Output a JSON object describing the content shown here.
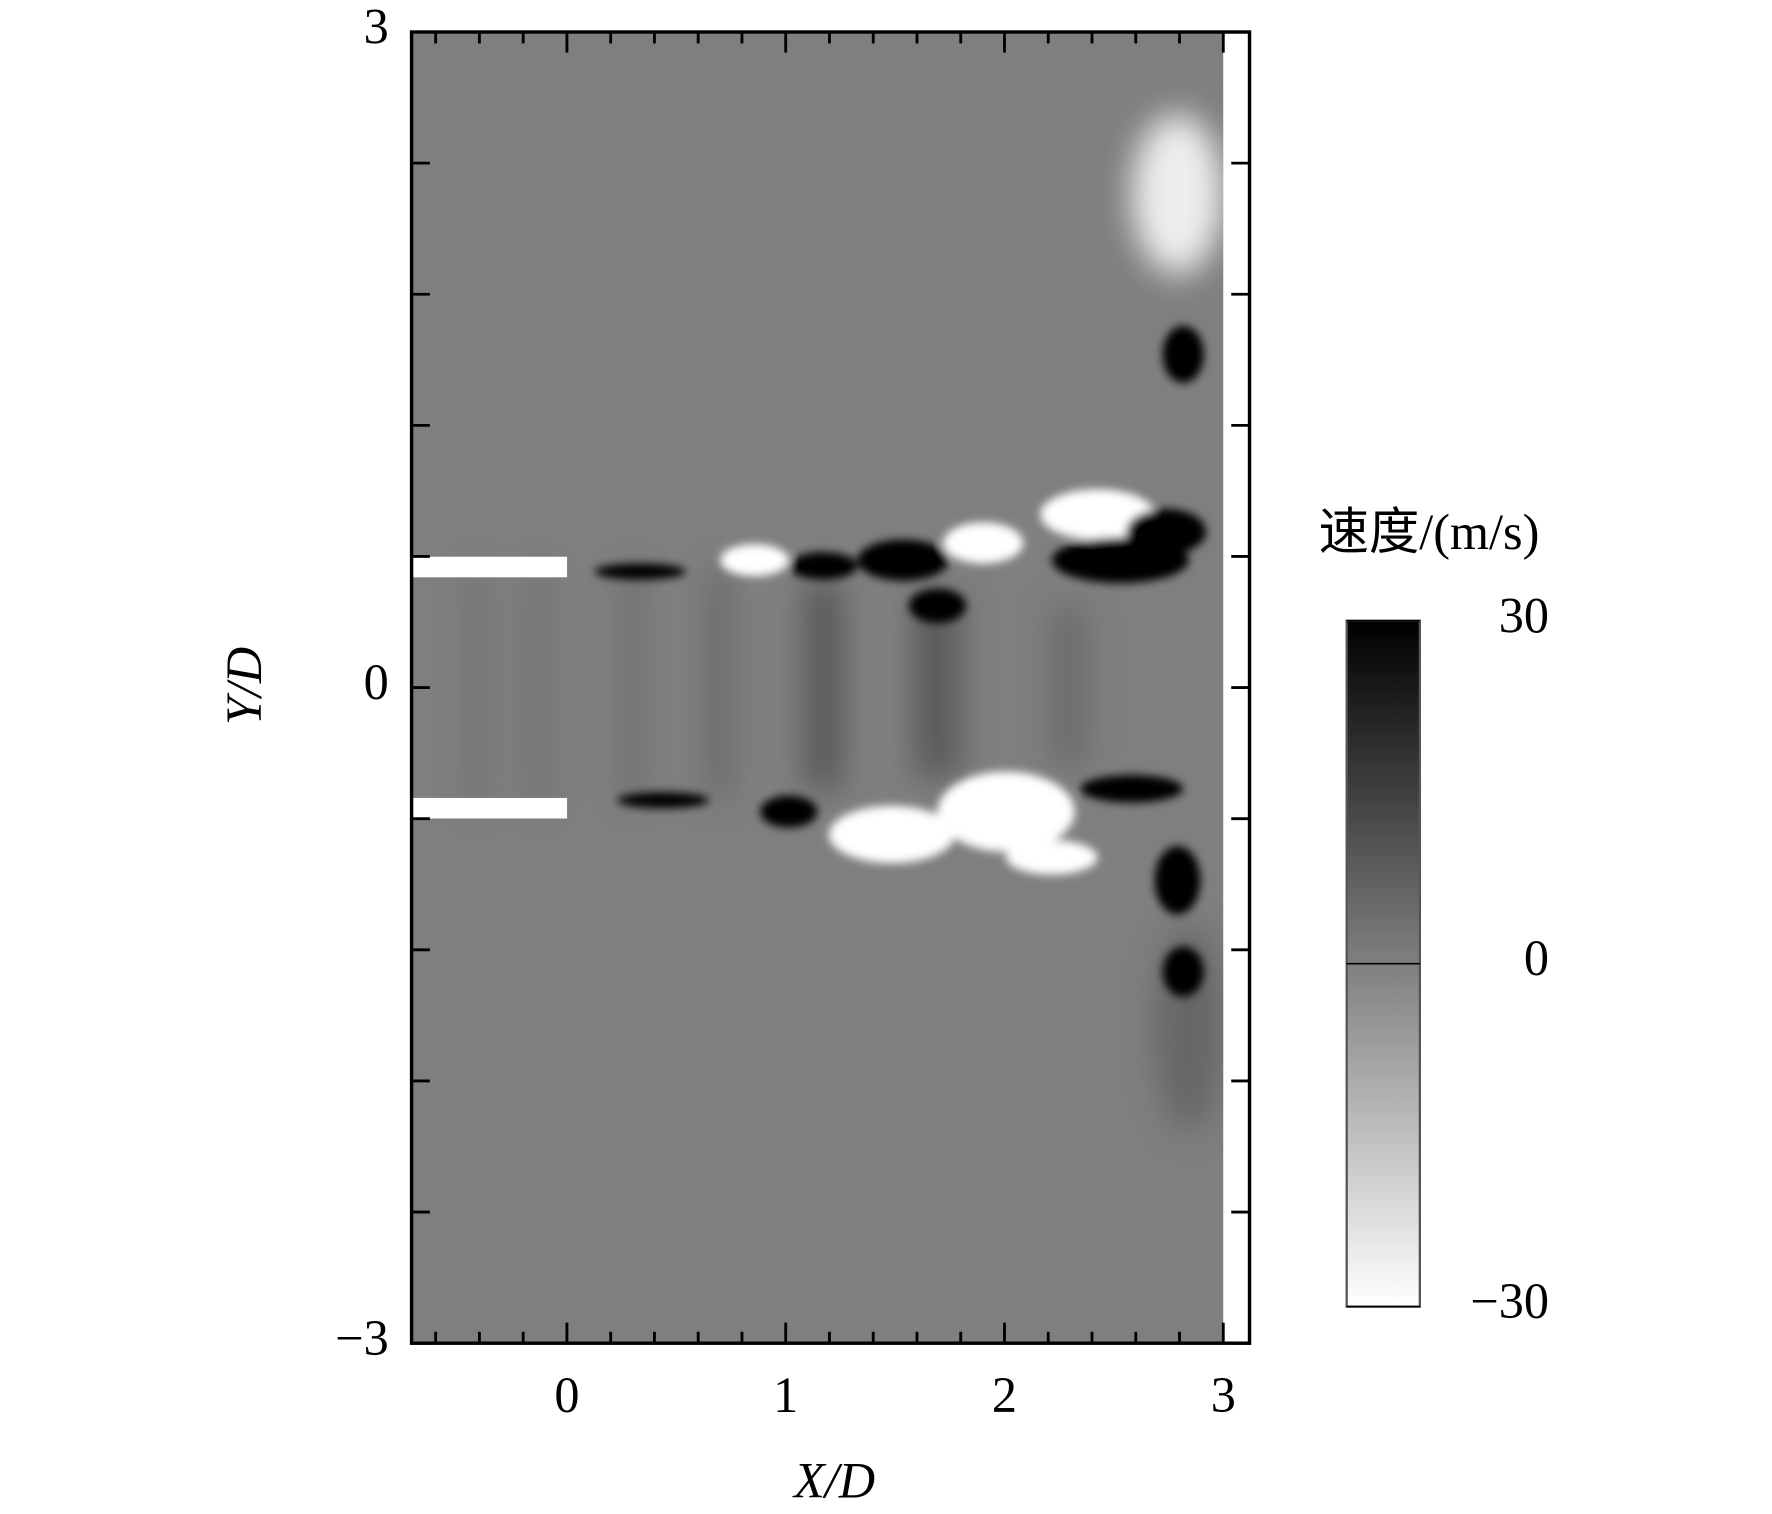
{
  "chart_data": {
    "type": "contour",
    "x_label": "X/D",
    "y_label": "Y/D",
    "xlim": [
      -0.71,
      3.12
    ],
    "ylim": [
      -3,
      3
    ],
    "xticks": [
      0,
      1,
      2,
      3
    ],
    "xminorticks": [
      -0.6,
      -0.4,
      -0.2,
      0.2,
      0.4,
      0.6,
      0.8,
      1.2,
      1.4,
      1.6,
      1.8,
      2.2,
      2.4,
      2.6,
      2.8
    ],
    "yticks": [
      3,
      0,
      {
        "value": -3,
        "label": "−3"
      }
    ],
    "yminorticks": [
      2.4,
      1.8,
      1.2,
      0.6,
      -0.6,
      -1.2,
      -1.8,
      -2.4
    ],
    "colorbar": {
      "label": "速度/(m/s)",
      "lim": [
        -30,
        30
      ],
      "ticks": [
        30,
        0,
        {
          "value": -30,
          "label": "−30"
        }
      ],
      "colors": [
        "#ffffff",
        "#000000"
      ]
    },
    "field_color": "#7f7f7f"
  }
}
